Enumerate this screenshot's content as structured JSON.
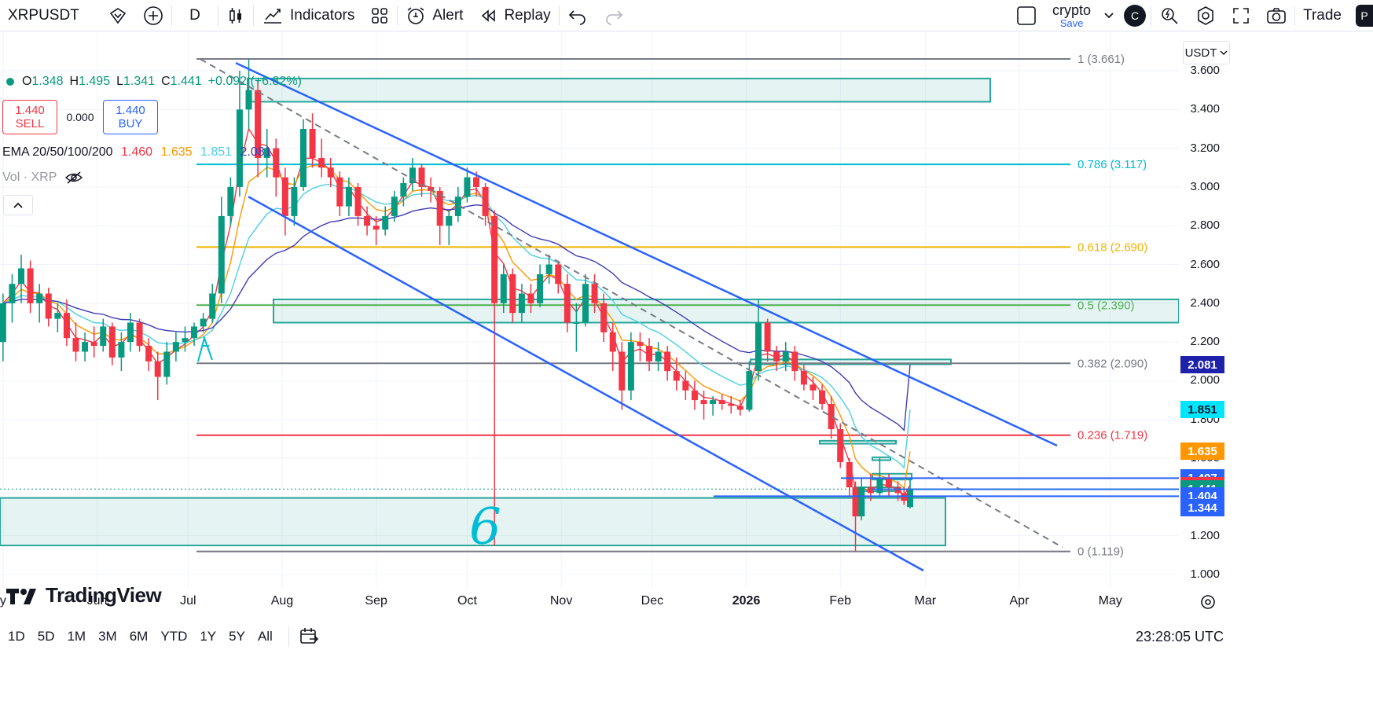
{
  "toolbar": {
    "symbol": "XRPUSDT",
    "interval": "D",
    "indicators": "Indicators",
    "alert": "Alert",
    "replay": "Replay",
    "layout_name": "crypto",
    "layout_save": "Save",
    "avatar": "C",
    "trade": "Trade",
    "right_avatar": "P"
  },
  "legend": {
    "o_label": "O",
    "o_value": "1.348",
    "h_label": "H",
    "h_value": "1.495",
    "l_label": "L",
    "l_value": "1.341",
    "c_label": "C",
    "c_value": "1.441",
    "change": "+0.092 (+6.82%)",
    "sell_price": "1.440",
    "sell_label": "SELL",
    "spread": "0.000",
    "buy_price": "1.440",
    "buy_label": "BUY",
    "ema_title": "EMA 20/50/100/200",
    "ema_values": [
      "1.460",
      "1.635",
      "1.851",
      "2.081"
    ],
    "vol_label": "Vol · XRP"
  },
  "logo": "TradingView",
  "currency": "USDT",
  "colors": {
    "up": "#089981",
    "down": "#f23645",
    "ema20": "#f23645",
    "ema50": "#ff9800",
    "ema100": "#4dd0e1",
    "ema200": "#3f3cb5",
    "channel": "#2962ff",
    "zone": "#26a69a"
  },
  "chart_data": {
    "type": "candlestick",
    "symbol": "XRPUSDT",
    "interval": "D",
    "ylim": [
      0.95,
      3.72
    ],
    "y_ticks": [
      1.0,
      1.2,
      1.4,
      1.6,
      1.8,
      2.0,
      2.2,
      2.4,
      2.6,
      2.8,
      3.0,
      3.2,
      3.4,
      3.6
    ],
    "x_ticks": [
      {
        "label": "y",
        "date": "2025-05-01"
      },
      {
        "label": "Jun",
        "date": "2025-06-01"
      },
      {
        "label": "Jul",
        "date": "2025-07-01"
      },
      {
        "label": "Aug",
        "date": "2025-08-01"
      },
      {
        "label": "Sep",
        "date": "2025-09-01"
      },
      {
        "label": "Oct",
        "date": "2025-10-01"
      },
      {
        "label": "Nov",
        "date": "2025-11-01"
      },
      {
        "label": "Dec",
        "date": "2025-12-01"
      },
      {
        "label": "2026",
        "date": "2026-01-01"
      },
      {
        "label": "Feb",
        "date": "2026-02-01"
      },
      {
        "label": "Mar",
        "date": "2026-03-01"
      },
      {
        "label": "Apr",
        "date": "2026-04-01"
      },
      {
        "label": "May",
        "date": "2026-05-01"
      }
    ],
    "candles": [
      [
        "2025-05-01",
        2.2,
        2.45,
        2.1,
        2.4
      ],
      [
        "2025-05-04",
        2.4,
        2.55,
        2.3,
        2.5
      ],
      [
        "2025-05-07",
        2.5,
        2.65,
        2.4,
        2.58
      ],
      [
        "2025-05-10",
        2.58,
        2.62,
        2.35,
        2.4
      ],
      [
        "2025-05-13",
        2.4,
        2.5,
        2.3,
        2.45
      ],
      [
        "2025-05-16",
        2.45,
        2.48,
        2.28,
        2.32
      ],
      [
        "2025-05-19",
        2.32,
        2.4,
        2.25,
        2.35
      ],
      [
        "2025-05-22",
        2.35,
        2.42,
        2.18,
        2.22
      ],
      [
        "2025-05-25",
        2.22,
        2.3,
        2.1,
        2.15
      ],
      [
        "2025-05-28",
        2.15,
        2.25,
        2.1,
        2.2
      ],
      [
        "2025-05-31",
        2.2,
        2.28,
        2.12,
        2.18
      ],
      [
        "2025-06-03",
        2.18,
        2.32,
        2.15,
        2.28
      ],
      [
        "2025-06-06",
        2.28,
        2.3,
        2.08,
        2.12
      ],
      [
        "2025-06-09",
        2.12,
        2.25,
        2.05,
        2.2
      ],
      [
        "2025-06-12",
        2.2,
        2.35,
        2.15,
        2.3
      ],
      [
        "2025-06-15",
        2.3,
        2.32,
        2.15,
        2.18
      ],
      [
        "2025-06-18",
        2.18,
        2.22,
        2.05,
        2.1
      ],
      [
        "2025-06-21",
        2.1,
        2.15,
        1.9,
        2.02
      ],
      [
        "2025-06-24",
        2.02,
        2.2,
        1.98,
        2.15
      ],
      [
        "2025-06-27",
        2.15,
        2.25,
        2.1,
        2.2
      ],
      [
        "2025-06-30",
        2.2,
        2.28,
        2.15,
        2.22
      ],
      [
        "2025-07-03",
        2.22,
        2.3,
        2.18,
        2.28
      ],
      [
        "2025-07-06",
        2.28,
        2.35,
        2.25,
        2.32
      ],
      [
        "2025-07-09",
        2.32,
        2.5,
        2.3,
        2.45
      ],
      [
        "2025-07-12",
        2.45,
        2.95,
        2.4,
        2.85
      ],
      [
        "2025-07-15",
        2.85,
        3.05,
        2.8,
        3.0
      ],
      [
        "2025-07-18",
        3.0,
        3.6,
        2.95,
        3.4
      ],
      [
        "2025-07-21",
        3.4,
        3.66,
        3.3,
        3.5
      ],
      [
        "2025-07-24",
        3.5,
        3.55,
        3.05,
        3.15
      ],
      [
        "2025-07-27",
        3.15,
        3.3,
        3.05,
        3.2
      ],
      [
        "2025-07-30",
        3.2,
        3.25,
        2.95,
        3.05
      ],
      [
        "2025-08-02",
        3.05,
        3.1,
        2.75,
        2.85
      ],
      [
        "2025-08-05",
        2.85,
        3.05,
        2.8,
        3.0
      ],
      [
        "2025-08-08",
        3.0,
        3.35,
        2.98,
        3.3
      ],
      [
        "2025-08-11",
        3.3,
        3.38,
        3.1,
        3.15
      ],
      [
        "2025-08-14",
        3.15,
        3.25,
        3.05,
        3.1
      ],
      [
        "2025-08-17",
        3.1,
        3.15,
        3.0,
        3.05
      ],
      [
        "2025-08-20",
        3.05,
        3.08,
        2.85,
        2.9
      ],
      [
        "2025-08-23",
        2.9,
        3.05,
        2.85,
        3.0
      ],
      [
        "2025-08-26",
        3.0,
        3.02,
        2.8,
        2.85
      ],
      [
        "2025-08-29",
        2.85,
        2.9,
        2.75,
        2.8
      ],
      [
        "2025-09-01",
        2.8,
        2.85,
        2.7,
        2.78
      ],
      [
        "2025-09-04",
        2.78,
        2.9,
        2.75,
        2.85
      ],
      [
        "2025-09-07",
        2.85,
        2.98,
        2.82,
        2.95
      ],
      [
        "2025-09-10",
        2.95,
        3.05,
        2.9,
        3.02
      ],
      [
        "2025-09-13",
        3.02,
        3.15,
        2.98,
        3.1
      ],
      [
        "2025-09-16",
        3.1,
        3.12,
        2.95,
        3.0
      ],
      [
        "2025-09-19",
        3.0,
        3.05,
        2.92,
        2.98
      ],
      [
        "2025-09-22",
        2.98,
        3.0,
        2.7,
        2.8
      ],
      [
        "2025-09-25",
        2.8,
        2.88,
        2.7,
        2.85
      ],
      [
        "2025-09-28",
        2.85,
        3.0,
        2.82,
        2.95
      ],
      [
        "2025-10-01",
        2.95,
        3.1,
        2.92,
        3.05
      ],
      [
        "2025-10-04",
        3.05,
        3.08,
        2.95,
        3.0
      ],
      [
        "2025-10-07",
        3.0,
        3.02,
        2.8,
        2.85
      ],
      [
        "2025-10-10",
        2.85,
        2.88,
        1.15,
        2.4
      ],
      [
        "2025-10-13",
        2.4,
        2.6,
        2.35,
        2.55
      ],
      [
        "2025-10-16",
        2.55,
        2.58,
        2.3,
        2.35
      ],
      [
        "2025-10-19",
        2.35,
        2.5,
        2.3,
        2.45
      ],
      [
        "2025-10-22",
        2.45,
        2.5,
        2.35,
        2.4
      ],
      [
        "2025-10-25",
        2.4,
        2.6,
        2.38,
        2.55
      ],
      [
        "2025-10-28",
        2.55,
        2.65,
        2.5,
        2.6
      ],
      [
        "2025-10-31",
        2.6,
        2.62,
        2.45,
        2.5
      ],
      [
        "2025-11-03",
        2.5,
        2.55,
        2.25,
        2.3
      ],
      [
        "2025-11-06",
        2.3,
        2.4,
        2.15,
        2.3
      ],
      [
        "2025-11-09",
        2.3,
        2.55,
        2.28,
        2.5
      ],
      [
        "2025-11-12",
        2.5,
        2.55,
        2.35,
        2.4
      ],
      [
        "2025-11-15",
        2.4,
        2.45,
        2.2,
        2.25
      ],
      [
        "2025-11-18",
        2.25,
        2.3,
        2.05,
        2.15
      ],
      [
        "2025-11-21",
        2.15,
        2.2,
        1.85,
        1.95
      ],
      [
        "2025-11-24",
        1.95,
        2.25,
        1.9,
        2.2
      ],
      [
        "2025-11-27",
        2.2,
        2.25,
        2.1,
        2.18
      ],
      [
        "2025-11-30",
        2.18,
        2.22,
        2.05,
        2.1
      ],
      [
        "2025-12-03",
        2.1,
        2.2,
        2.05,
        2.15
      ],
      [
        "2025-12-06",
        2.15,
        2.18,
        2.0,
        2.05
      ],
      [
        "2025-12-09",
        2.05,
        2.12,
        1.95,
        2.0
      ],
      [
        "2025-12-12",
        2.0,
        2.05,
        1.9,
        1.95
      ],
      [
        "2025-12-15",
        1.95,
        2.0,
        1.85,
        1.9
      ],
      [
        "2025-12-18",
        1.9,
        1.95,
        1.8,
        1.88
      ],
      [
        "2025-12-21",
        1.88,
        1.92,
        1.82,
        1.9
      ],
      [
        "2025-12-24",
        1.9,
        1.93,
        1.85,
        1.88
      ],
      [
        "2025-12-27",
        1.88,
        1.92,
        1.83,
        1.87
      ],
      [
        "2025-12-30",
        1.87,
        1.9,
        1.82,
        1.85
      ],
      [
        "2026-01-02",
        1.85,
        2.1,
        1.84,
        2.05
      ],
      [
        "2026-01-05",
        2.05,
        2.42,
        2.0,
        2.3
      ],
      [
        "2026-01-08",
        2.3,
        2.32,
        2.1,
        2.15
      ],
      [
        "2026-01-11",
        2.15,
        2.18,
        2.05,
        2.1
      ],
      [
        "2026-01-14",
        2.1,
        2.2,
        2.05,
        2.15
      ],
      [
        "2026-01-17",
        2.15,
        2.18,
        2.0,
        2.05
      ],
      [
        "2026-01-20",
        2.05,
        2.08,
        1.95,
        1.98
      ],
      [
        "2026-01-23",
        1.98,
        2.02,
        1.9,
        1.95
      ],
      [
        "2026-01-26",
        1.95,
        1.98,
        1.85,
        1.88
      ],
      [
        "2026-01-29",
        1.88,
        1.92,
        1.7,
        1.75
      ],
      [
        "2026-02-01",
        1.75,
        1.78,
        1.55,
        1.58
      ],
      [
        "2026-02-04",
        1.58,
        1.6,
        1.4,
        1.45
      ],
      [
        "2026-02-06",
        1.45,
        1.48,
        1.12,
        1.3
      ],
      [
        "2026-02-08",
        1.3,
        1.5,
        1.28,
        1.45
      ],
      [
        "2026-02-11",
        1.45,
        1.52,
        1.38,
        1.42
      ],
      [
        "2026-02-14",
        1.42,
        1.6,
        1.4,
        1.5
      ],
      [
        "2026-02-17",
        1.5,
        1.52,
        1.4,
        1.45
      ],
      [
        "2026-02-20",
        1.45,
        1.48,
        1.38,
        1.42
      ],
      [
        "2026-02-22",
        1.42,
        1.45,
        1.36,
        1.38
      ],
      [
        "2026-02-24",
        1.348,
        1.495,
        1.341,
        1.441
      ]
    ],
    "ema": [
      {
        "name": "EMA 20",
        "last": 1.46
      },
      {
        "name": "EMA 50",
        "last": 1.635
      },
      {
        "name": "EMA 100",
        "last": 1.851
      },
      {
        "name": "EMA 200",
        "last": 2.081
      }
    ],
    "fibonacci": [
      {
        "level": "1",
        "price": 3.661,
        "label": "1 (3.661)",
        "color": "#787b86"
      },
      {
        "level": "0.786",
        "price": 3.117,
        "label": "0.786 (3.117)",
        "color": "#00bcd4"
      },
      {
        "level": "0.618",
        "price": 2.69,
        "label": "0.618 (2.690)",
        "color": "#f0b400"
      },
      {
        "level": "0.5",
        "price": 2.39,
        "label": "0.5 (2.390)",
        "color": "#4caf50"
      },
      {
        "level": "0.382",
        "price": 2.09,
        "label": "0.382 (2.090)",
        "color": "#787b86"
      },
      {
        "level": "0.236",
        "price": 1.719,
        "label": "0.236 (1.719)",
        "color": "#f23645"
      },
      {
        "level": "0",
        "price": 1.119,
        "label": "0 (1.119)",
        "color": "#787b86"
      }
    ],
    "price_tags": [
      {
        "text": "2.081",
        "price": 2.081,
        "bg": "#1e22aa"
      },
      {
        "text": "1.851",
        "price": 1.851,
        "bg": "#00e5ff",
        "fg": "#131722"
      },
      {
        "text": "1.635",
        "price": 1.635,
        "bg": "#ff9800"
      },
      {
        "text": "1.497",
        "price": 1.497,
        "bg": "#2962ff"
      },
      {
        "text": "1.460",
        "price": 1.46,
        "bg": "#f23645"
      },
      {
        "text": "1.441",
        "price": 1.441,
        "bg": "#089981"
      },
      {
        "text": "31:55",
        "price": 1.397,
        "bg": "#089981"
      },
      {
        "text": "1.404",
        "price": 1.404,
        "bg": "#2962ff"
      },
      {
        "text": "1.344",
        "price": 1.344,
        "bg": "#2962ff"
      }
    ],
    "annotation": "6"
  },
  "bottom": {
    "ranges": [
      "1D",
      "5D",
      "1M",
      "3M",
      "6M",
      "YTD",
      "1Y",
      "5Y",
      "All"
    ],
    "clock": "23:28:05 UTC"
  }
}
